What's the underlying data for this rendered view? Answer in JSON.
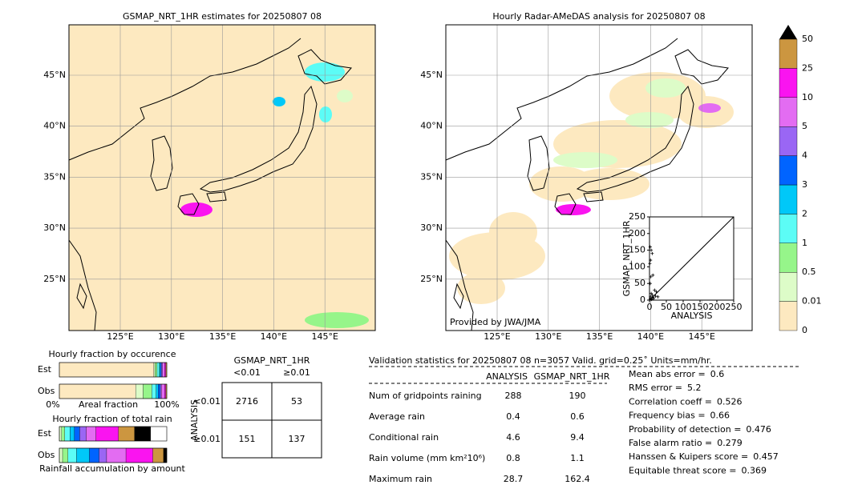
{
  "maps": [
    {
      "title": "GSMAP_NRT_1HR estimates for 20250807 08",
      "lat_labels": [
        "45°N",
        "40°N",
        "35°N",
        "30°N",
        "25°N"
      ],
      "lon_labels": [
        "125°E",
        "130°E",
        "135°E",
        "140°E",
        "145°E"
      ]
    },
    {
      "title": "Hourly Radar-AMeDAS analysis for 20250807 08",
      "lat_labels": [
        "45°N",
        "40°N",
        "35°N",
        "30°N",
        "25°N"
      ],
      "lon_labels": [
        "125°E",
        "130°E",
        "135°E",
        "140°E",
        "145°E"
      ],
      "credit": "Provided by JWA/JMA"
    }
  ],
  "colorbar": {
    "levels": [
      0,
      0.01,
      0.5,
      1,
      2,
      3,
      4,
      5,
      10,
      25,
      50
    ],
    "colors": [
      "#fde9c0",
      "#ddfcc8",
      "#96f58a",
      "#5cfcf6",
      "#00c8f8",
      "#0064ff",
      "#9a66f4",
      "#e36cf2",
      "#fa14f0",
      "#cc9640",
      "#000000"
    ]
  },
  "chart_data": {
    "type": "scatter",
    "xlabel": "ANALYSIS",
    "ylabel": "GSMAP_NRT_1HR",
    "xlim": [
      0,
      250
    ],
    "ylim": [
      0,
      250
    ],
    "xticks": [
      0,
      50,
      100,
      150,
      200,
      250
    ],
    "yticks": [
      0,
      50,
      100,
      150,
      200,
      250
    ],
    "x": [
      2,
      5,
      8,
      3,
      1,
      4,
      10,
      2,
      15,
      20,
      5,
      8,
      3,
      10,
      12,
      2,
      6,
      25,
      18
    ],
    "y": [
      160,
      150,
      140,
      120,
      110,
      70,
      75,
      50,
      30,
      25,
      20,
      15,
      10,
      8,
      5,
      3,
      2,
      10,
      12
    ]
  },
  "fractions": {
    "occurrence": {
      "title": "Hourly fraction by occurence",
      "rows": [
        "Est",
        "Obs"
      ],
      "values": [
        [
          88,
          1,
          2,
          2,
          1,
          1,
          1,
          2,
          1,
          1,
          0
        ],
        [
          71,
          7,
          8,
          4,
          2,
          2,
          1,
          3,
          1,
          1,
          0
        ]
      ],
      "axis_labels": [
        "0%",
        "Areal fraction",
        "100%"
      ]
    },
    "amount": {
      "title": "Hourly fraction of total rain",
      "rows": [
        "Est",
        "Obs"
      ],
      "values": [
        [
          0,
          2,
          3,
          5,
          4,
          5,
          6,
          9,
          21,
          15,
          15
        ],
        [
          0,
          3,
          5,
          8,
          12,
          9,
          7,
          18,
          25,
          10,
          3
        ]
      ],
      "caption": "Rainfall accumulation by amount"
    }
  },
  "contingency": {
    "title": "GSMAP_NRT_1HR",
    "columns": [
      "<0.01",
      "≥0.01"
    ],
    "row_title": "ANALYSIS",
    "rows": [
      "<0.01",
      "≥0.01"
    ],
    "cells": [
      [
        2716,
        53
      ],
      [
        151,
        137
      ]
    ]
  },
  "validation": {
    "header": "Validation statistics for 20250807 08  n=3057 Valid. grid=0.25˚ Units=mm/hr.",
    "columns": [
      "ANALYSIS",
      "GSMAP_NRT_1HR"
    ],
    "rows": [
      [
        "Num of gridpoints raining",
        288,
        190
      ],
      [
        "Average rain",
        0.4,
        0.6
      ],
      [
        "Conditional rain",
        4.6,
        9.4
      ],
      [
        "Rain volume (mm km²10⁶)",
        0.8,
        1.1
      ],
      [
        "Maximum rain",
        28.7,
        162.4
      ]
    ],
    "scores": [
      [
        "Mean abs error =",
        0.6
      ],
      [
        "RMS error =",
        5.2
      ],
      [
        "Correlation coeff =",
        0.526
      ],
      [
        "Frequency bias =",
        0.66
      ],
      [
        "Probability of detection =",
        0.476
      ],
      [
        "False alarm ratio =",
        0.279
      ],
      [
        "Hanssen & Kuipers score =",
        0.457
      ],
      [
        "Equitable threat score =",
        0.369
      ]
    ]
  }
}
